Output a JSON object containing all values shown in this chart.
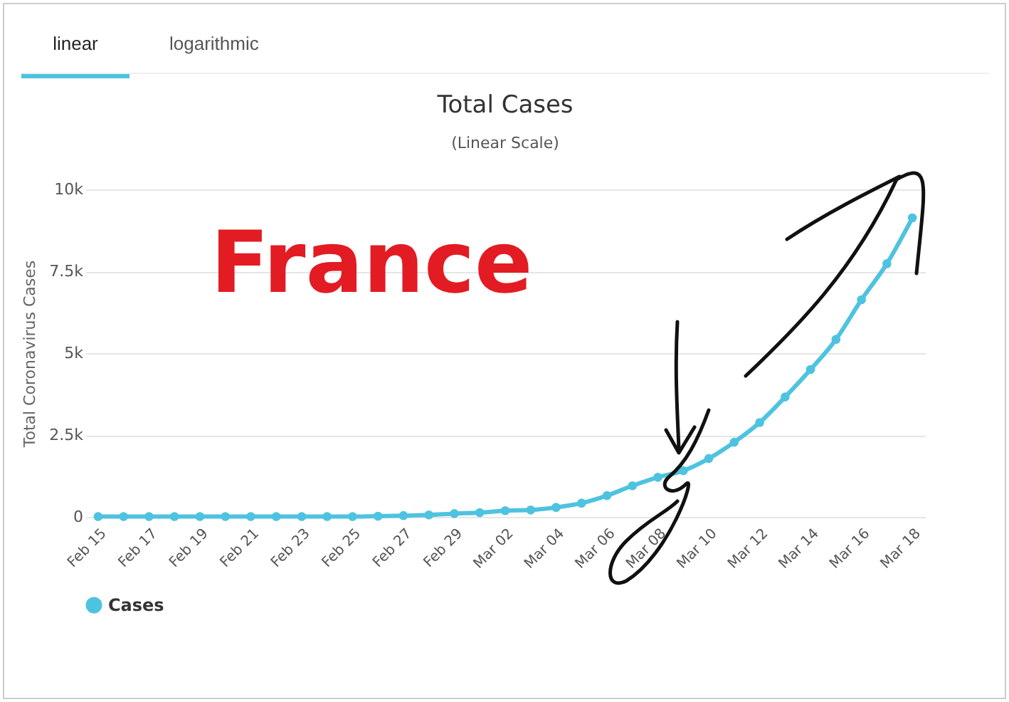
{
  "chart_data": {
    "type": "line",
    "title": "Total Cases",
    "subtitle": "(Linear Scale)",
    "ylabel": "Total Coronavirus Cases",
    "categories": [
      "Feb 15",
      null,
      "Feb 17",
      null,
      "Feb 19",
      null,
      "Feb 21",
      null,
      "Feb 23",
      null,
      "Feb 25",
      null,
      "Feb 27",
      null,
      "Feb 29",
      null,
      "Mar 02",
      null,
      "Mar 04",
      null,
      "Mar 06",
      null,
      "Mar 08",
      null,
      "Mar 10",
      null,
      "Mar 12",
      null,
      "Mar 14",
      null,
      "Mar 16",
      null,
      "Mar 18"
    ],
    "series": [
      {
        "name": "Cases",
        "color": "#4ec3e0",
        "values": [
          10,
          10,
          10,
          10,
          10,
          10,
          10,
          10,
          10,
          10,
          10,
          20,
          40,
          60,
          100,
          130,
          190,
          210,
          290,
          420,
          650,
          950,
          1210,
          1410,
          1780,
          2280,
          2880,
          3660,
          4500,
          5420,
          6630,
          7730,
          9130
        ]
      }
    ],
    "ylim": [
      0,
      10000
    ],
    "yticks": [
      {
        "value": 0,
        "label": "0"
      },
      {
        "value": 2500,
        "label": "2.5k"
      },
      {
        "value": 5000,
        "label": "5k"
      },
      {
        "value": 7500,
        "label": "7.5k"
      },
      {
        "value": 10000,
        "label": "10k"
      }
    ],
    "grid": "y",
    "legend": "bottom",
    "marker": "circle",
    "line_style": "solid",
    "annotations": [
      "linear",
      "logarithmic",
      "France"
    ]
  }
}
